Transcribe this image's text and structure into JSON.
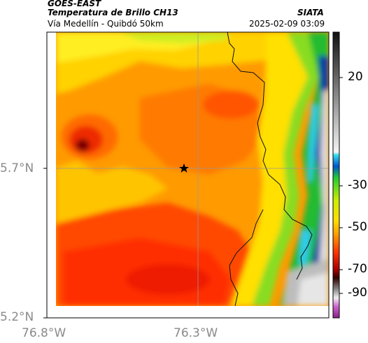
{
  "header": {
    "satellite": "GOES-EAST",
    "product": "Temperatura de Brillo CH13",
    "region": "Vía Medellín - Quibdó 50km",
    "agency": "SIATA",
    "timestamp": "2025-02-09 03:09"
  },
  "axes": {
    "lon_ticks": [
      "76.8°W",
      "76.3°W"
    ],
    "lat_ticks": [
      "5.7°N",
      "5.2°N"
    ]
  },
  "colorbar": {
    "labels": [
      "20",
      "-30",
      "-50",
      "-70",
      "-90"
    ]
  },
  "colors": {
    "land_hot": "#ff8800",
    "land_warm": "#ffaa00",
    "yellow": "#ffee00",
    "green": "#22cc22",
    "blue": "#0033aa",
    "red": "#ee2200",
    "darkred": "#770000",
    "gray": "#bbbbbb"
  },
  "icons": {
    "marker": "star-icon"
  }
}
